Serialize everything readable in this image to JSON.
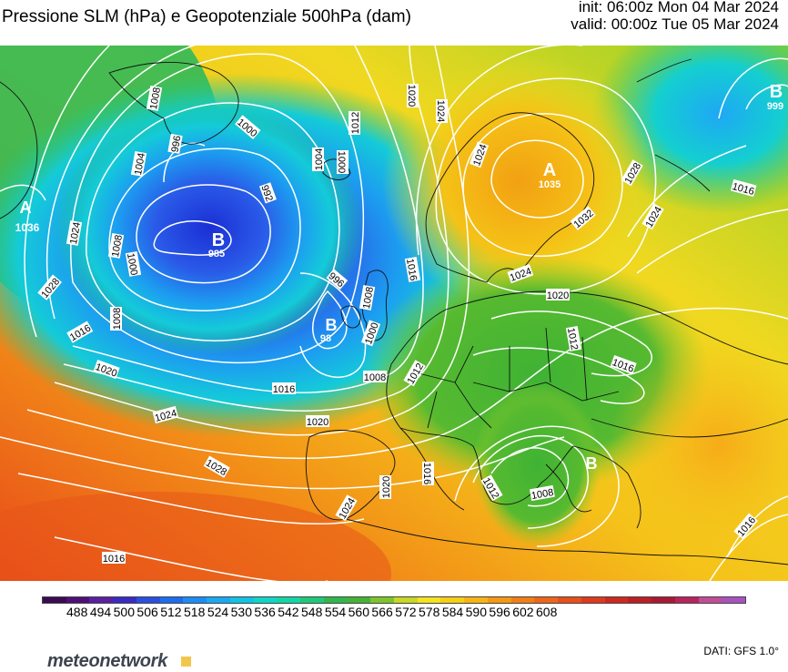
{
  "header": {
    "title": "Pressione SLM (hPa) e Geopotenziale 500hPa (dam)",
    "init": "init: 06:00z Mon 04 Mar 2024",
    "valid": "valid: 00:00z Tue 05 Mar 2024"
  },
  "map": {
    "isobar_labels": [
      "1008",
      "1004",
      "996",
      "1000",
      "992",
      "1008",
      "1004",
      "1000",
      "1020",
      "1024",
      "1012",
      "1024",
      "1036",
      "1024",
      "1028",
      "1016",
      "1000",
      "1008",
      "996",
      "1000",
      "1016",
      "1020",
      "1024",
      "1028",
      "1016",
      "1008",
      "1008",
      "1012",
      "1016",
      "1020",
      "1024",
      "1020",
      "1016",
      "1020",
      "1024",
      "1028",
      "1024",
      "1032",
      "1028",
      "1024",
      "1016",
      "1024",
      "1020",
      "1012",
      "1016",
      "1016",
      "1012",
      "1008",
      "1016"
    ],
    "pressure_centers": [
      {
        "letter": "B",
        "value": "985"
      },
      {
        "letter": "B",
        "value": "98"
      },
      {
        "letter": "A",
        "value": "1035"
      },
      {
        "letter": "A",
        "value": "1036"
      },
      {
        "letter": "B",
        "value": "999"
      },
      {
        "letter": "B",
        "value": ""
      }
    ]
  },
  "legend": {
    "ticks": [
      "488",
      "494",
      "500",
      "506",
      "512",
      "518",
      "524",
      "530",
      "536",
      "542",
      "548",
      "554",
      "560",
      "566",
      "572",
      "578",
      "584",
      "590",
      "596",
      "602",
      "608"
    ],
    "colors": [
      "#3b0a52",
      "#4f0f7a",
      "#5a1fa3",
      "#3a2bc4",
      "#2a4fe0",
      "#1e6cf0",
      "#1e8cf5",
      "#1aa9f2",
      "#12c3e3",
      "#10d6c8",
      "#12d7a4",
      "#20c97a",
      "#31b84b",
      "#45b436",
      "#7ec52c",
      "#c8d823",
      "#f5e41c",
      "#f7cf15",
      "#f7b412",
      "#f59912",
      "#f27f15",
      "#ee6619",
      "#e84f1b",
      "#df3a1d",
      "#cf2a1f",
      "#bc1f26",
      "#a81a33",
      "#b8245c",
      "#c34c96",
      "#a852c0"
    ]
  },
  "footer": {
    "brand": "meteonetwork",
    "source": "DATI: GFS 1.0°"
  }
}
